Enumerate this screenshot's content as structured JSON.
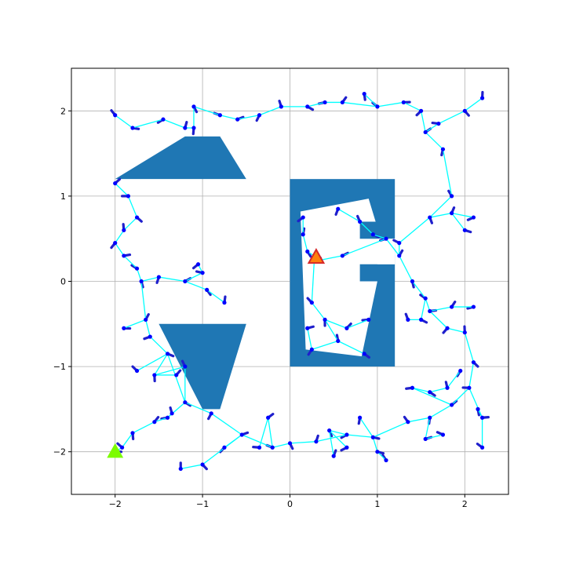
{
  "chart_data": {
    "type": "scatter",
    "title": "",
    "xlabel": "",
    "ylabel": "",
    "xlim": [
      -2.5,
      2.5
    ],
    "ylim": [
      -2.5,
      2.5
    ],
    "grid": true,
    "x_ticks": [
      -2,
      -1,
      0,
      1,
      2
    ],
    "y_ticks": [
      -2,
      -1,
      0,
      1,
      2
    ],
    "x_tick_labels": [
      "−2",
      "−1",
      "0",
      "1",
      "2"
    ],
    "y_tick_labels": [
      "−2",
      "−1",
      "0",
      "1",
      "2"
    ],
    "colors": {
      "obstacle": "#1f77b4",
      "tree_edge": "#00ffff",
      "node": "#0000ff",
      "branch": "#1f1fcc",
      "start": "#7cfc00",
      "goal_fill": "#ff7f0e",
      "goal_edge": "#d62728",
      "grid": "#b0b0b0"
    },
    "obstacles": [
      {
        "name": "upper-left-trapezoid",
        "points": [
          [
            -2.0,
            1.2
          ],
          [
            -1.2,
            1.7
          ],
          [
            -0.8,
            1.7
          ],
          [
            -0.5,
            1.2
          ]
        ]
      },
      {
        "name": "lower-left-trapezoid",
        "points": [
          [
            -1.5,
            -0.5
          ],
          [
            -0.5,
            -0.5
          ],
          [
            -0.8,
            -1.5
          ],
          [
            -1.0,
            -1.5
          ]
        ]
      },
      {
        "name": "right-block-outer",
        "points": [
          [
            0.0,
            -1.0
          ],
          [
            1.2,
            -1.0
          ],
          [
            1.2,
            0.2
          ],
          [
            0.8,
            0.2
          ],
          [
            0.8,
            0.0
          ],
          [
            1.0,
            0.0
          ],
          [
            1.0,
            -0.8
          ],
          [
            0.2,
            -0.8
          ],
          [
            0.2,
            0.85
          ],
          [
            0.95,
            1.0
          ],
          [
            1.0,
            0.7
          ],
          [
            0.8,
            0.7
          ],
          [
            0.8,
            0.5
          ],
          [
            1.0,
            0.5
          ],
          [
            1.0,
            0.5
          ],
          [
            1.2,
            0.5
          ],
          [
            1.2,
            1.2
          ],
          [
            0.0,
            1.2
          ]
        ]
      }
    ],
    "tree_nodes": [
      [
        -2.0,
        -2.0
      ],
      [
        -1.92,
        -1.95
      ],
      [
        -1.8,
        -1.78
      ],
      [
        -1.55,
        -1.65
      ],
      [
        -1.4,
        -1.6
      ],
      [
        -1.2,
        -1.42
      ],
      [
        -1.35,
        -1.55
      ],
      [
        -0.9,
        -1.55
      ],
      [
        -0.55,
        -1.8
      ],
      [
        -0.2,
        -1.95
      ],
      [
        0.0,
        -1.9
      ],
      [
        0.3,
        -1.88
      ],
      [
        0.65,
        -1.8
      ],
      [
        0.95,
        -1.83
      ],
      [
        1.35,
        -1.65
      ],
      [
        1.6,
        -1.6
      ],
      [
        1.85,
        -1.45
      ],
      [
        2.05,
        -1.25
      ],
      [
        2.1,
        -0.95
      ],
      [
        2.0,
        -0.6
      ],
      [
        1.8,
        -0.55
      ],
      [
        1.6,
        -0.35
      ],
      [
        1.55,
        -0.2
      ],
      [
        1.4,
        0.0
      ],
      [
        1.25,
        0.3
      ],
      [
        1.1,
        0.5
      ],
      [
        0.95,
        0.55
      ],
      [
        0.8,
        0.7
      ],
      [
        0.55,
        0.85
      ],
      [
        0.6,
        0.3
      ],
      [
        0.35,
        0.25
      ],
      [
        0.2,
        0.35
      ],
      [
        0.15,
        0.55
      ],
      [
        0.15,
        0.75
      ],
      [
        0.28,
        0.28
      ],
      [
        0.25,
        -0.25
      ],
      [
        0.4,
        -0.45
      ],
      [
        0.65,
        -0.55
      ],
      [
        0.9,
        -0.45
      ],
      [
        0.85,
        -0.85
      ],
      [
        0.55,
        -0.7
      ],
      [
        0.25,
        -0.8
      ],
      [
        0.2,
        -0.55
      ],
      [
        1.25,
        0.45
      ],
      [
        1.6,
        0.75
      ],
      [
        1.85,
        0.8
      ],
      [
        2.1,
        0.75
      ],
      [
        2.0,
        0.6
      ],
      [
        1.85,
        1.0
      ],
      [
        1.75,
        1.55
      ],
      [
        1.55,
        1.75
      ],
      [
        1.7,
        1.85
      ],
      [
        2.0,
        2.0
      ],
      [
        2.2,
        2.15
      ],
      [
        1.5,
        2.0
      ],
      [
        1.3,
        2.1
      ],
      [
        1.0,
        2.05
      ],
      [
        0.85,
        2.2
      ],
      [
        0.6,
        2.1
      ],
      [
        0.4,
        2.1
      ],
      [
        0.2,
        2.05
      ],
      [
        -0.1,
        2.05
      ],
      [
        -0.35,
        1.95
      ],
      [
        -0.6,
        1.9
      ],
      [
        -0.8,
        1.95
      ],
      [
        -1.1,
        2.05
      ],
      [
        -1.2,
        1.8
      ],
      [
        -1.45,
        1.9
      ],
      [
        -1.8,
        1.8
      ],
      [
        -2.0,
        1.95
      ],
      [
        -1.1,
        1.8
      ],
      [
        -2.0,
        1.15
      ],
      [
        -1.85,
        1.0
      ],
      [
        -1.75,
        0.75
      ],
      [
        -1.9,
        0.6
      ],
      [
        -2.0,
        0.45
      ],
      [
        -1.9,
        0.3
      ],
      [
        -1.75,
        0.15
      ],
      [
        -1.7,
        0.0
      ],
      [
        -1.65,
        -0.45
      ],
      [
        -1.6,
        -0.65
      ],
      [
        -1.4,
        -0.85
      ],
      [
        -1.2,
        -1.0
      ],
      [
        -1.5,
        0.05
      ],
      [
        -1.2,
        0.0
      ],
      [
        -1.0,
        0.1
      ],
      [
        -0.95,
        -0.1
      ],
      [
        -0.75,
        -0.25
      ],
      [
        -1.05,
        0.2
      ],
      [
        -1.9,
        -0.55
      ],
      [
        -1.75,
        -1.05
      ],
      [
        -1.55,
        -1.1
      ],
      [
        -1.3,
        -1.1
      ],
      [
        1.4,
        -1.25
      ],
      [
        1.6,
        -1.3
      ],
      [
        1.8,
        -1.25
      ],
      [
        1.95,
        -1.05
      ],
      [
        1.55,
        -1.85
      ],
      [
        1.75,
        -1.8
      ],
      [
        0.45,
        -1.75
      ],
      [
        0.5,
        -2.05
      ],
      [
        0.65,
        -1.95
      ],
      [
        1.0,
        -2.0
      ],
      [
        1.1,
        -2.1
      ],
      [
        0.8,
        -1.6
      ],
      [
        -0.25,
        -1.6
      ],
      [
        -0.35,
        -1.95
      ],
      [
        -1.0,
        -2.15
      ],
      [
        -1.25,
        -2.2
      ],
      [
        -0.75,
        -1.95
      ],
      [
        2.2,
        -1.6
      ],
      [
        2.2,
        -1.95
      ],
      [
        2.15,
        -1.5
      ],
      [
        1.85,
        -0.3
      ],
      [
        2.1,
        -0.3
      ],
      [
        1.5,
        -0.45
      ],
      [
        1.35,
        -0.45
      ]
    ],
    "tree_edges": [
      [
        0,
        1
      ],
      [
        1,
        2
      ],
      [
        2,
        3
      ],
      [
        3,
        4
      ],
      [
        4,
        6
      ],
      [
        4,
        5
      ],
      [
        5,
        7
      ],
      [
        7,
        8
      ],
      [
        8,
        9
      ],
      [
        9,
        10
      ],
      [
        10,
        11
      ],
      [
        11,
        12
      ],
      [
        12,
        13
      ],
      [
        13,
        14
      ],
      [
        14,
        15
      ],
      [
        15,
        16
      ],
      [
        16,
        17
      ],
      [
        17,
        18
      ],
      [
        18,
        19
      ],
      [
        19,
        20
      ],
      [
        20,
        21
      ],
      [
        21,
        22
      ],
      [
        22,
        23
      ],
      [
        23,
        24
      ],
      [
        24,
        25
      ],
      [
        25,
        26
      ],
      [
        26,
        27
      ],
      [
        27,
        28
      ],
      [
        24,
        43
      ],
      [
        43,
        44
      ],
      [
        44,
        45
      ],
      [
        45,
        46
      ],
      [
        45,
        47
      ],
      [
        44,
        48
      ],
      [
        48,
        49
      ],
      [
        49,
        50
      ],
      [
        50,
        51
      ],
      [
        51,
        52
      ],
      [
        52,
        53
      ],
      [
        50,
        54
      ],
      [
        54,
        55
      ],
      [
        55,
        56
      ],
      [
        56,
        57
      ],
      [
        56,
        58
      ],
      [
        58,
        59
      ],
      [
        59,
        60
      ],
      [
        60,
        61
      ],
      [
        61,
        62
      ],
      [
        62,
        63
      ],
      [
        63,
        64
      ],
      [
        64,
        65
      ],
      [
        65,
        70
      ],
      [
        70,
        66
      ],
      [
        66,
        67
      ],
      [
        67,
        68
      ],
      [
        68,
        69
      ],
      [
        25,
        29
      ],
      [
        29,
        30
      ],
      [
        30,
        31
      ],
      [
        31,
        32
      ],
      [
        32,
        33
      ],
      [
        30,
        34
      ],
      [
        34,
        35
      ],
      [
        35,
        36
      ],
      [
        36,
        37
      ],
      [
        37,
        38
      ],
      [
        36,
        40
      ],
      [
        40,
        39
      ],
      [
        40,
        41
      ],
      [
        41,
        42
      ],
      [
        5,
        81
      ],
      [
        81,
        80
      ],
      [
        80,
        79
      ],
      [
        79,
        78
      ],
      [
        78,
        77
      ],
      [
        77,
        76
      ],
      [
        76,
        75
      ],
      [
        75,
        74
      ],
      [
        74,
        73
      ],
      [
        73,
        72
      ],
      [
        72,
        71
      ],
      [
        78,
        83
      ],
      [
        83,
        84
      ],
      [
        84,
        85
      ],
      [
        85,
        88
      ],
      [
        84,
        86
      ],
      [
        86,
        87
      ],
      [
        79,
        89
      ],
      [
        81,
        90
      ],
      [
        81,
        91
      ],
      [
        91,
        92
      ],
      [
        82,
        91
      ],
      [
        82,
        5
      ],
      [
        16,
        93
      ],
      [
        93,
        94
      ],
      [
        94,
        95
      ],
      [
        95,
        96
      ],
      [
        15,
        97
      ],
      [
        97,
        98
      ],
      [
        12,
        99
      ],
      [
        99,
        100
      ],
      [
        99,
        101
      ],
      [
        13,
        102
      ],
      [
        102,
        103
      ],
      [
        13,
        104
      ],
      [
        9,
        105
      ],
      [
        105,
        106
      ],
      [
        8,
        107
      ],
      [
        107,
        108
      ],
      [
        8,
        109
      ],
      [
        17,
        110
      ],
      [
        110,
        111
      ],
      [
        110,
        112
      ],
      [
        21,
        113
      ],
      [
        113,
        114
      ],
      [
        22,
        115
      ],
      [
        115,
        116
      ]
    ],
    "start": [
      -2.0,
      -2.0
    ],
    "goal": [
      0.3,
      0.28
    ]
  }
}
